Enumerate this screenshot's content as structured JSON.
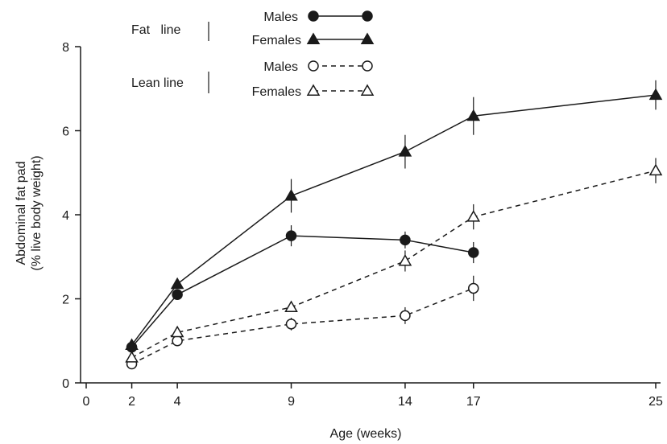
{
  "chart_data": {
    "type": "line",
    "title": "",
    "xlabel": "Age (weeks)",
    "ylabel": [
      "Abdominal fat pad",
      "(% live body weight)"
    ],
    "xlim": [
      0,
      25
    ],
    "ylim": [
      0,
      8
    ],
    "x_ticks": [
      0,
      2,
      4,
      9,
      14,
      17,
      25
    ],
    "y_ticks": [
      0,
      2,
      4,
      6,
      8
    ],
    "grid": false,
    "legend_placement": "top-left",
    "legend_groups": [
      {
        "label": "Fat   line",
        "entries": [
          "Males",
          "Females"
        ]
      },
      {
        "label": "Lean line",
        "entries": [
          "Males",
          "Females"
        ]
      }
    ],
    "series": [
      {
        "name": "Males",
        "group": "Fat line",
        "marker": "circle-filled",
        "line": "solid",
        "x": [
          2,
          4,
          9,
          14,
          17
        ],
        "y": [
          0.85,
          2.1,
          3.5,
          3.4,
          3.1
        ],
        "err": [
          0.1,
          0.1,
          0.25,
          0.2,
          0.25
        ]
      },
      {
        "name": "Females",
        "group": "Fat line",
        "marker": "triangle-filled",
        "line": "solid",
        "x": [
          2,
          4,
          9,
          14,
          17,
          25
        ],
        "y": [
          0.9,
          2.35,
          4.45,
          5.5,
          6.35,
          6.85
        ],
        "err": [
          0.1,
          0.1,
          0.4,
          0.4,
          0.45,
          0.35
        ]
      },
      {
        "name": "Males",
        "group": "Lean line",
        "marker": "circle-open",
        "line": "dashed",
        "x": [
          2,
          4,
          9,
          14,
          17
        ],
        "y": [
          0.45,
          1.0,
          1.4,
          1.6,
          2.25
        ],
        "err": [
          0.05,
          0.1,
          0.15,
          0.2,
          0.3
        ]
      },
      {
        "name": "Females",
        "group": "Lean line",
        "marker": "triangle-open",
        "line": "dashed",
        "x": [
          2,
          4,
          9,
          14,
          17,
          25
        ],
        "y": [
          0.6,
          1.2,
          1.8,
          2.9,
          3.95,
          5.05
        ],
        "err": [
          0.05,
          0.1,
          0.1,
          0.25,
          0.3,
          0.3
        ]
      }
    ]
  }
}
